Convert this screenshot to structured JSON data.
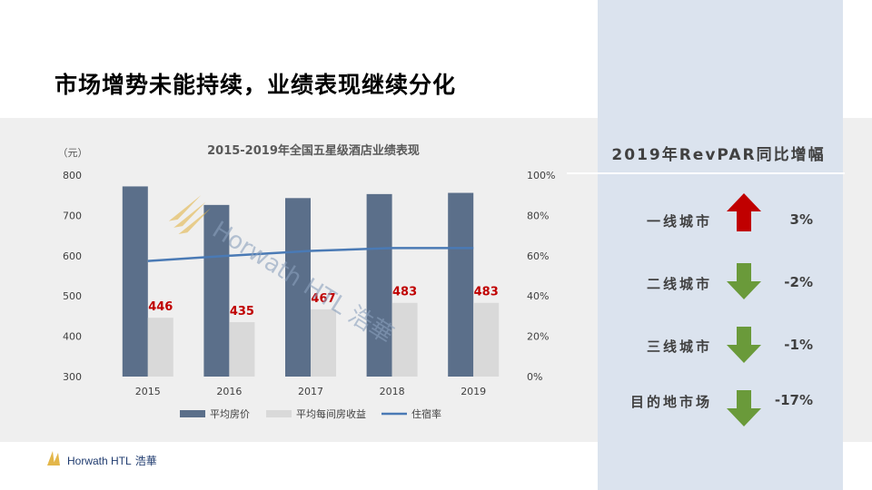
{
  "title": "市场增势未能持续，业绩表现继续分化",
  "chart_data": {
    "type": "bar",
    "title": "2015-2019年全国五星级酒店业绩表现",
    "y_unit": "（元）",
    "categories": [
      "2015",
      "2016",
      "2017",
      "2018",
      "2019"
    ],
    "series": [
      {
        "name": "平均房价",
        "type": "bar",
        "axis": "left",
        "color": "#5b6f8a",
        "values": [
          772,
          726,
          743,
          753,
          756
        ]
      },
      {
        "name": "平均每间房收益",
        "type": "bar",
        "axis": "left",
        "color": "#d9d9d9",
        "values": [
          446,
          435,
          467,
          483,
          483
        ],
        "data_labels": [
          "446",
          "435",
          "467",
          "483",
          "483"
        ]
      },
      {
        "name": "住宿率",
        "type": "line",
        "axis": "right",
        "color": "#4a7ab5",
        "values": [
          0.574,
          0.6,
          0.624,
          0.638,
          0.638
        ]
      }
    ],
    "ylim": [
      300,
      800
    ],
    "y_ticks": [
      "300",
      "400",
      "500",
      "600",
      "700",
      "800"
    ],
    "y2lim": [
      0,
      1
    ],
    "y2_ticks": [
      "0%",
      "20%",
      "40%",
      "60%",
      "80%",
      "100%"
    ],
    "grid": false,
    "legend_position": "bottom",
    "data_label_color": "#c00000"
  },
  "watermark": {
    "text": "Horwath HTL 浩華"
  },
  "right_panel": {
    "title": "2019年RevPAR同比增幅",
    "rows": [
      {
        "label": "一线城市",
        "value": "3%",
        "direction": "up",
        "color": "#c00000",
        "icon": "arrow-up-icon"
      },
      {
        "label": "二线城市",
        "value": "-2%",
        "direction": "down",
        "color": "#6a9a3a",
        "icon": "arrow-down-icon"
      },
      {
        "label": "三线城市",
        "value": "-1%",
        "direction": "down",
        "color": "#6a9a3a",
        "icon": "arrow-down-icon"
      },
      {
        "label": "目的地市场",
        "value": "-17%",
        "direction": "down",
        "color": "#6a9a3a",
        "icon": "arrow-down-icon"
      }
    ]
  },
  "footer": {
    "brand": "Horwath HTL",
    "brand_cn": "浩華"
  }
}
